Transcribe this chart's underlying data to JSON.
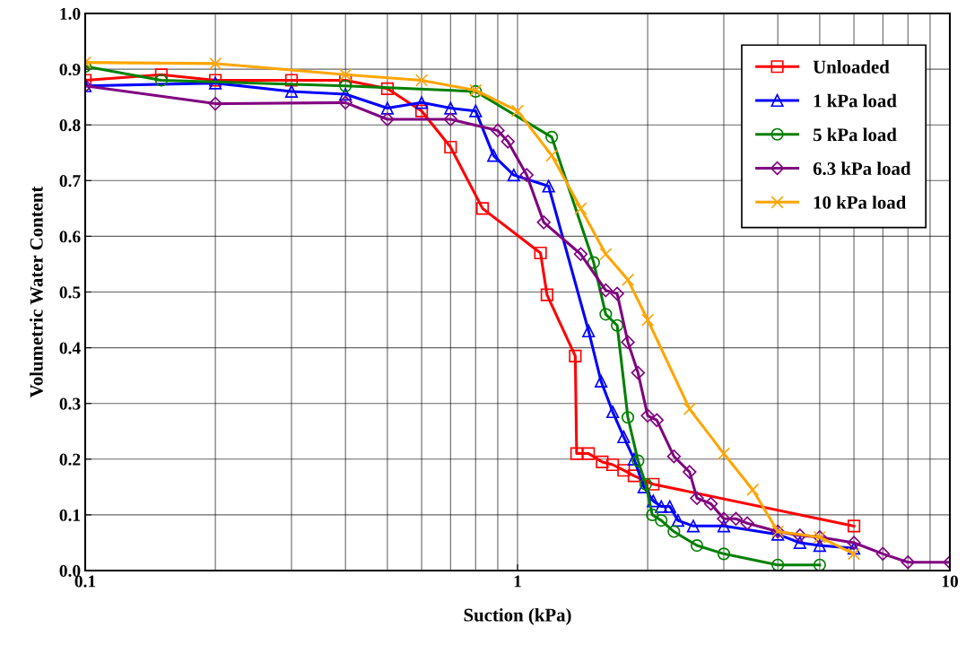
{
  "chart_data": {
    "type": "line",
    "xlabel": "Suction (kPa)",
    "ylabel": "Volumetric Water Content",
    "log": "x",
    "xlim": [
      0.1,
      10
    ],
    "xticks": [
      0.1,
      1,
      10
    ],
    "ylim": [
      0,
      1
    ],
    "yticks": [
      {
        "value": 0,
        "label": "0.0"
      },
      0.1,
      0.2,
      0.3,
      0.4,
      0.5,
      0.6,
      0.7,
      0.8,
      0.9,
      {
        "value": 1,
        "label": "1.0"
      }
    ],
    "grid": true,
    "legend": "top right",
    "series": [
      {
        "name": "Unloaded",
        "color": "#ff0000",
        "marker": "square",
        "x": [
          0.1,
          0.15,
          0.2,
          0.3,
          0.4,
          0.5,
          0.6,
          0.7,
          0.83,
          1.13,
          1.17,
          1.36,
          1.37,
          1.46,
          1.57,
          1.66,
          1.76,
          1.86,
          2.06,
          6.0
        ],
        "values": [
          0.88,
          0.89,
          0.88,
          0.88,
          0.88,
          0.865,
          0.825,
          0.76,
          0.65,
          0.57,
          0.495,
          0.385,
          0.21,
          0.21,
          0.195,
          0.19,
          0.18,
          0.17,
          0.155,
          0.08
        ]
      },
      {
        "name": "1 kPa load",
        "color": "#0000ff",
        "marker": "triangle",
        "x": [
          0.1,
          0.2,
          0.3,
          0.4,
          0.5,
          0.6,
          0.7,
          0.8,
          0.88,
          0.98,
          1.18,
          1.46,
          1.56,
          1.66,
          1.76,
          1.86,
          1.96,
          2.06,
          2.15,
          2.25,
          2.35,
          2.55,
          3.0,
          4.0,
          4.5,
          5.0,
          6.0
        ],
        "values": [
          0.87,
          0.875,
          0.86,
          0.855,
          0.83,
          0.84,
          0.83,
          0.825,
          0.745,
          0.71,
          0.69,
          0.43,
          0.34,
          0.285,
          0.24,
          0.2,
          0.15,
          0.125,
          0.115,
          0.115,
          0.09,
          0.08,
          0.08,
          0.065,
          0.05,
          0.045,
          0.04
        ]
      },
      {
        "name": "5 kPa load",
        "color": "#008000",
        "marker": "circle",
        "x": [
          0.1,
          0.15,
          0.4,
          0.8,
          1.2,
          1.5,
          1.6,
          1.7,
          1.8,
          1.9,
          1.98,
          2.05,
          2.15,
          2.3,
          2.6,
          3.0,
          4.0,
          5.0
        ],
        "values": [
          0.905,
          0.88,
          0.87,
          0.86,
          0.778,
          0.553,
          0.46,
          0.44,
          0.275,
          0.197,
          0.155,
          0.1,
          0.09,
          0.07,
          0.045,
          0.03,
          0.01,
          0.01
        ]
      },
      {
        "name": "6.3 kPa load",
        "color": "#800080",
        "marker": "diamond",
        "x": [
          0.1,
          0.2,
          0.4,
          0.5,
          0.7,
          0.9,
          0.95,
          1.05,
          1.15,
          1.4,
          1.6,
          1.7,
          1.8,
          1.9,
          2.0,
          2.1,
          2.3,
          2.5,
          2.6,
          2.8,
          3.0,
          3.2,
          3.4,
          4.0,
          4.5,
          5.0,
          6.0,
          7.0,
          8.0,
          10.0
        ],
        "values": [
          0.87,
          0.838,
          0.84,
          0.81,
          0.81,
          0.79,
          0.77,
          0.71,
          0.625,
          0.568,
          0.503,
          0.497,
          0.41,
          0.355,
          0.278,
          0.27,
          0.205,
          0.177,
          0.13,
          0.12,
          0.093,
          0.093,
          0.085,
          0.07,
          0.063,
          0.06,
          0.05,
          0.03,
          0.015,
          0.015
        ]
      },
      {
        "name": "10 kPa load",
        "color": "#ffa500",
        "marker": "cross",
        "x": [
          0.1,
          0.2,
          0.4,
          0.6,
          0.8,
          1.0,
          1.2,
          1.4,
          1.6,
          1.8,
          2.0,
          2.5,
          3.0,
          3.5,
          4.0,
          5.0,
          6.0
        ],
        "values": [
          0.912,
          0.91,
          0.89,
          0.88,
          0.862,
          0.825,
          0.745,
          0.65,
          0.568,
          0.522,
          0.45,
          0.29,
          0.21,
          0.145,
          0.07,
          0.06,
          0.03
        ]
      }
    ]
  }
}
